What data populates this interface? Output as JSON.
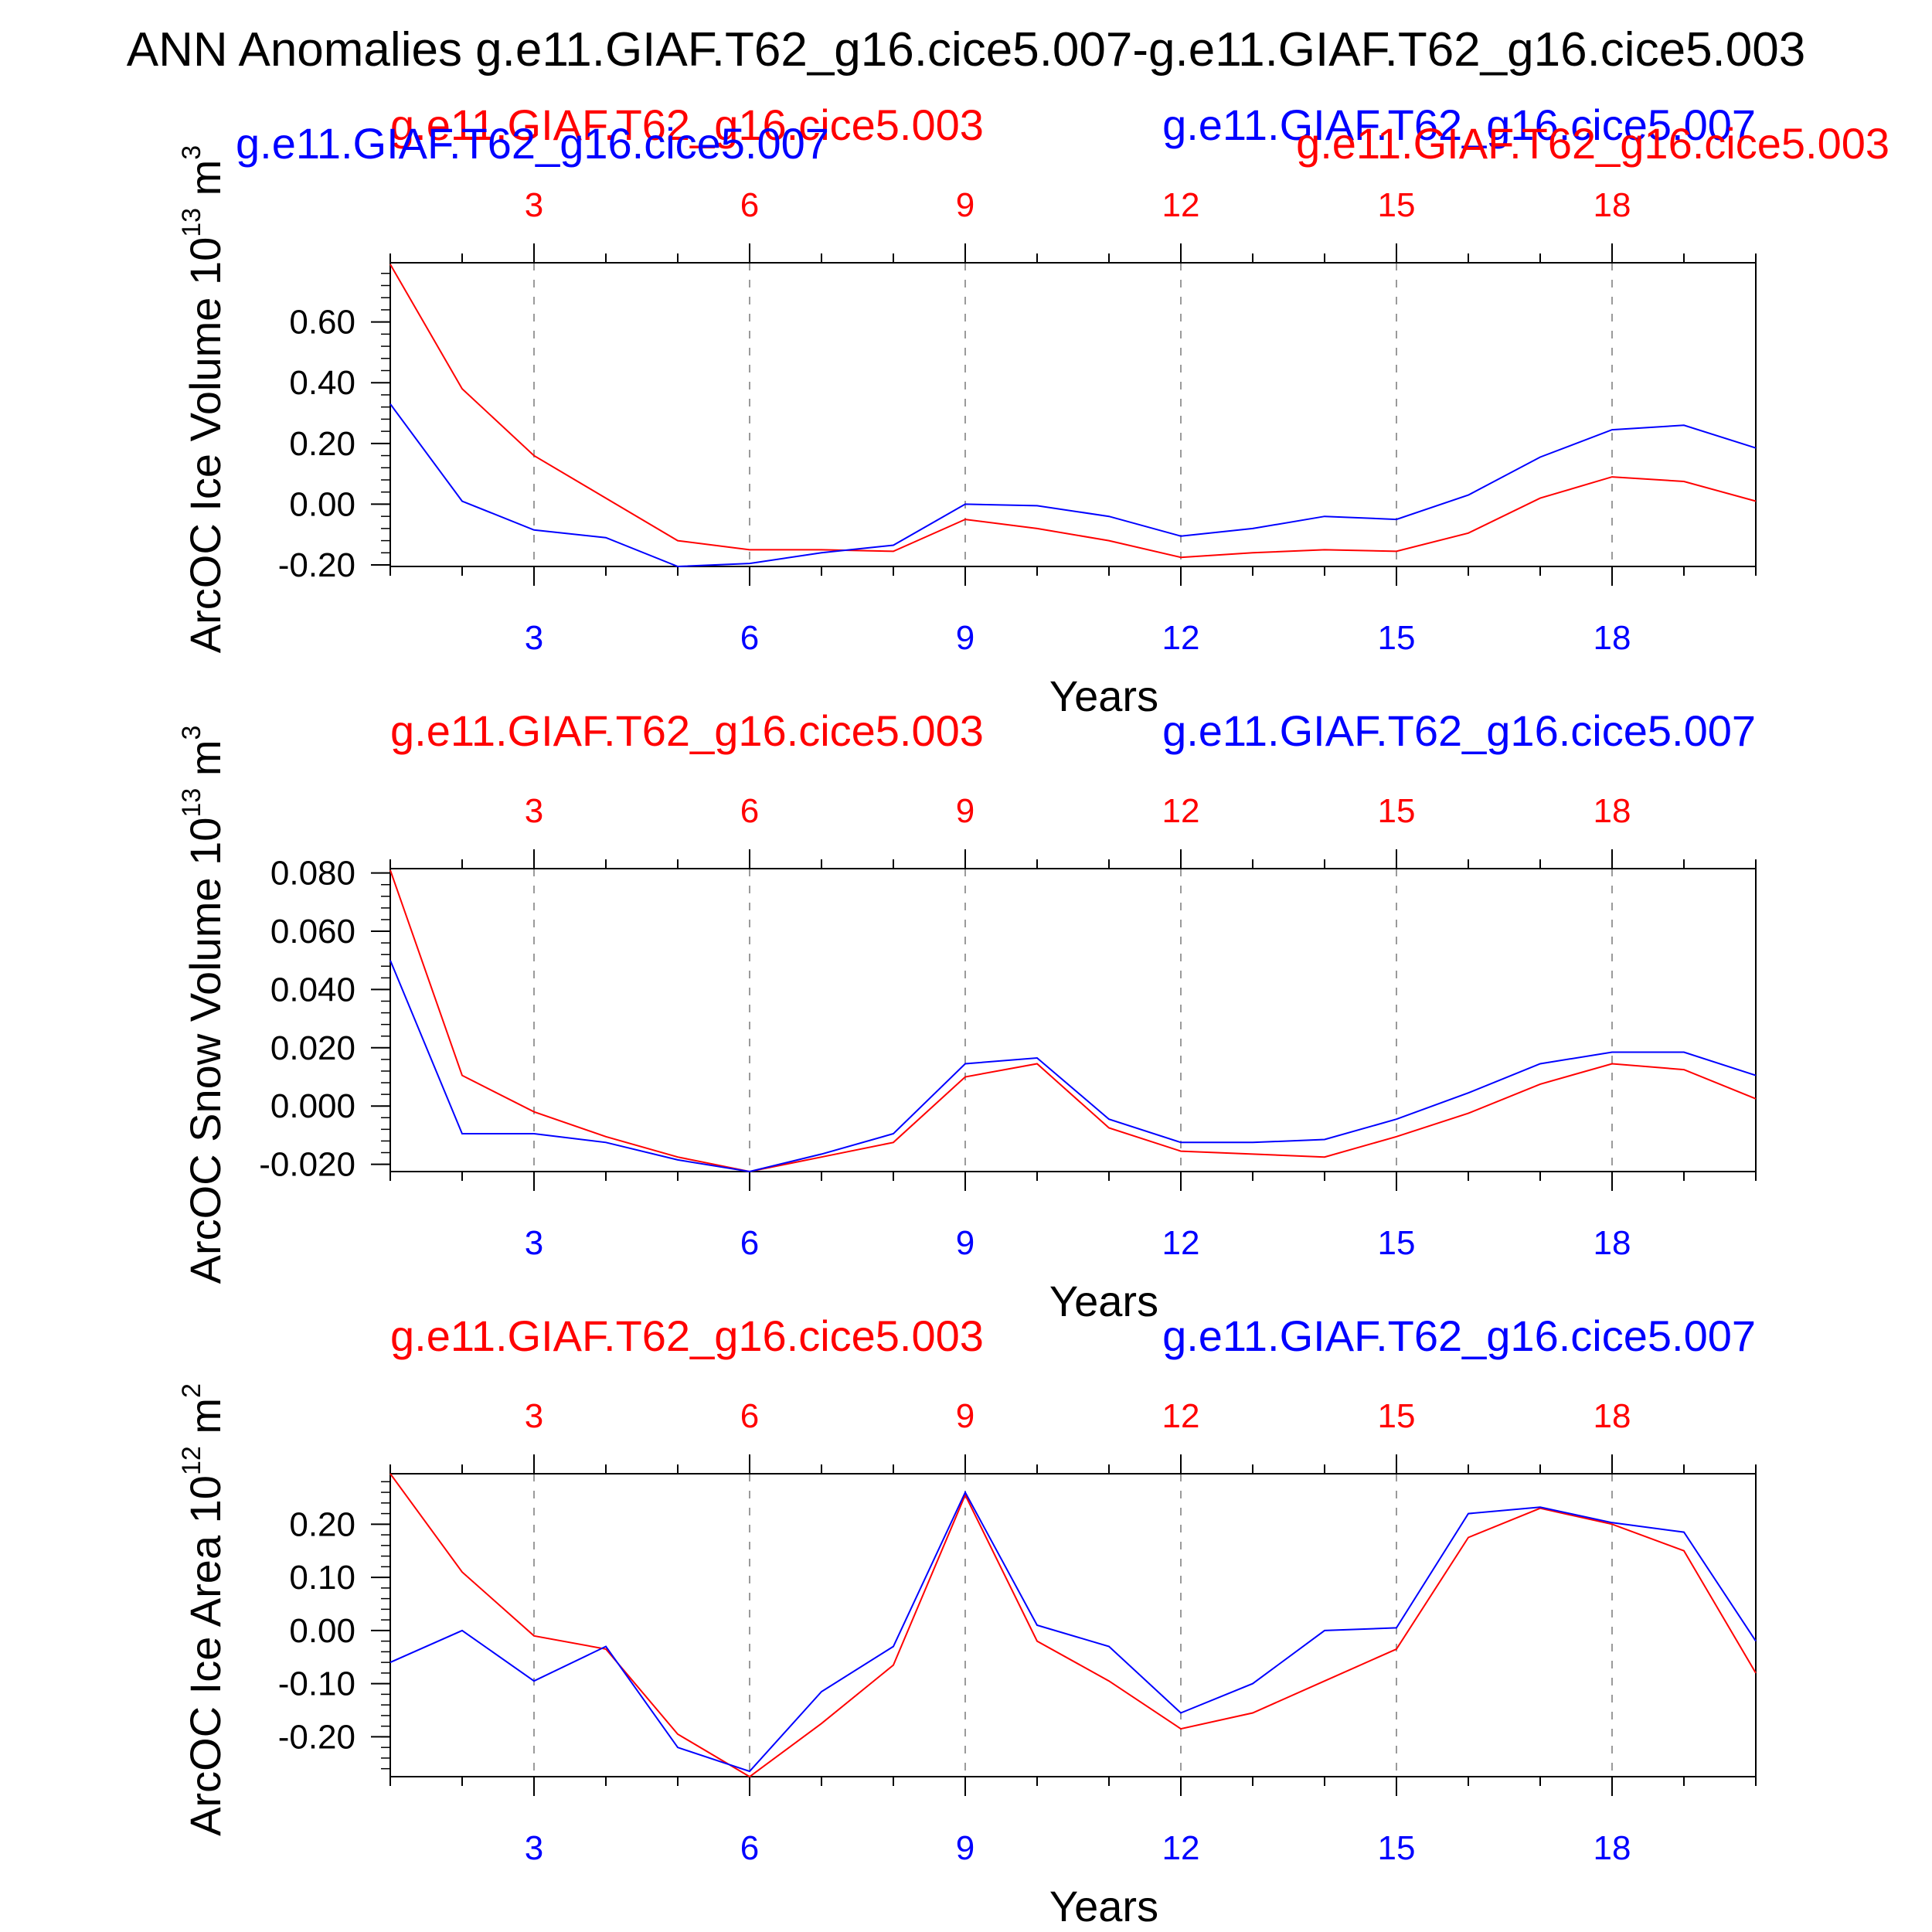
{
  "title": "ANN Anomalies g.e11.GIAF.T62_g16.cice5.007-g.e11.GIAF.T62_g16.cice5.003",
  "colors": {
    "case_red": "#ff0000",
    "case_blue": "#0000ff",
    "axis": "#000000",
    "grid": "#9a9a9a"
  },
  "legend": {
    "red": "g.e11.GIAF.T62_g16.cice5.003",
    "blue": "g.e11.GIAF.T62_g16.cice5.007"
  },
  "chart_data": [
    {
      "type": "line",
      "ylabel_main": "ArcOC Ice Volume 10",
      "ylabel_exp": "13",
      "ylabel_unit": "m",
      "ylabel_unit_exp": "3",
      "xlabel": "Years",
      "xlim": [
        1,
        20
      ],
      "ylim": [
        -0.205,
        0.795
      ],
      "yticks": [
        -0.2,
        0.0,
        0.2,
        0.4,
        0.6
      ],
      "ytick_labels": [
        "-0.20",
        "0.00",
        "0.20",
        "0.40",
        "0.60"
      ],
      "xticks": [
        3,
        6,
        9,
        12,
        15,
        18
      ],
      "xtick_labels": [
        "3",
        "6",
        "9",
        "12",
        "15",
        "18"
      ],
      "series": [
        {
          "name": "g.e11.GIAF.T62_g16.cice5.003",
          "color": "#ff0000",
          "x": [
            1,
            2,
            3,
            4,
            5,
            6,
            7,
            8,
            9,
            10,
            11,
            12,
            13,
            14,
            15,
            16,
            17,
            18,
            19,
            20
          ],
          "values": [
            0.79,
            0.38,
            0.16,
            0.02,
            -0.12,
            -0.15,
            -0.15,
            -0.155,
            -0.05,
            -0.08,
            -0.12,
            -0.175,
            -0.16,
            -0.15,
            -0.155,
            -0.095,
            0.02,
            0.09,
            0.075,
            0.01
          ]
        },
        {
          "name": "g.e11.GIAF.T62_g16.cice5.007",
          "color": "#0000ff",
          "x": [
            1,
            2,
            3,
            4,
            5,
            6,
            7,
            8,
            9,
            10,
            11,
            12,
            13,
            14,
            15,
            16,
            17,
            18,
            19,
            20
          ],
          "values": [
            0.33,
            0.01,
            -0.085,
            -0.11,
            -0.205,
            -0.195,
            -0.16,
            -0.135,
            0.0,
            -0.005,
            -0.04,
            -0.105,
            -0.08,
            -0.04,
            -0.05,
            0.03,
            0.155,
            0.245,
            0.26,
            0.185
          ]
        }
      ]
    },
    {
      "type": "line",
      "ylabel_main": "ArcOC Snow Volume 10",
      "ylabel_exp": "13",
      "ylabel_unit": "m",
      "ylabel_unit_exp": "3",
      "xlabel": "Years",
      "xlim": [
        1,
        20
      ],
      "ylim": [
        -0.0225,
        0.0815
      ],
      "yticks": [
        -0.02,
        0.0,
        0.02,
        0.04,
        0.06,
        0.08
      ],
      "ytick_labels": [
        "-0.020",
        "0.000",
        "0.020",
        "0.040",
        "0.060",
        "0.080"
      ],
      "xticks": [
        3,
        6,
        9,
        12,
        15,
        18
      ],
      "xtick_labels": [
        "3",
        "6",
        "9",
        "12",
        "15",
        "18"
      ],
      "series": [
        {
          "name": "g.e11.GIAF.T62_g16.cice5.003",
          "color": "#ff0000",
          "x": [
            1,
            2,
            3,
            4,
            5,
            6,
            7,
            8,
            9,
            10,
            11,
            12,
            13,
            14,
            15,
            16,
            17,
            18,
            19,
            20
          ],
          "values": [
            0.081,
            0.0105,
            -0.002,
            -0.0105,
            -0.0175,
            -0.0225,
            -0.0175,
            -0.0125,
            0.01,
            0.0145,
            -0.0075,
            -0.0155,
            -0.0165,
            -0.0175,
            -0.0105,
            -0.0025,
            0.0075,
            0.0145,
            0.0125,
            0.0025
          ]
        },
        {
          "name": "g.e11.GIAF.T62_g16.cice5.007",
          "color": "#0000ff",
          "x": [
            1,
            2,
            3,
            4,
            5,
            6,
            7,
            8,
            9,
            10,
            11,
            12,
            13,
            14,
            15,
            16,
            17,
            18,
            19,
            20
          ],
          "values": [
            0.05,
            -0.0095,
            -0.0095,
            -0.0125,
            -0.0185,
            -0.0225,
            -0.0165,
            -0.0095,
            0.0145,
            0.0165,
            -0.0045,
            -0.0125,
            -0.0125,
            -0.0115,
            -0.0045,
            0.0045,
            0.0145,
            0.0185,
            0.0185,
            0.0105
          ]
        }
      ]
    },
    {
      "type": "line",
      "ylabel_main": "ArcOC Ice Area 10",
      "ylabel_exp": "12",
      "ylabel_unit": "m",
      "ylabel_unit_exp": "2",
      "xlabel": "Years",
      "xlim": [
        1,
        20
      ],
      "ylim": [
        -0.275,
        0.295
      ],
      "yticks": [
        -0.2,
        -0.1,
        0.0,
        0.1,
        0.2
      ],
      "ytick_labels": [
        "-0.20",
        "-0.10",
        "0.00",
        "0.10",
        "0.20"
      ],
      "xticks": [
        3,
        6,
        9,
        12,
        15,
        18
      ],
      "xtick_labels": [
        "3",
        "6",
        "9",
        "12",
        "15",
        "18"
      ],
      "series": [
        {
          "name": "g.e11.GIAF.T62_g16.cice5.003",
          "color": "#ff0000",
          "x": [
            1,
            2,
            3,
            4,
            5,
            6,
            7,
            8,
            9,
            10,
            11,
            12,
            13,
            14,
            15,
            16,
            17,
            18,
            19,
            20
          ],
          "values": [
            0.295,
            0.11,
            -0.01,
            -0.035,
            -0.195,
            -0.275,
            -0.175,
            -0.065,
            0.255,
            -0.02,
            -0.095,
            -0.185,
            -0.155,
            -0.095,
            -0.035,
            0.175,
            0.23,
            0.2,
            0.15,
            -0.08
          ]
        },
        {
          "name": "g.e11.GIAF.T62_g16.cice5.007",
          "color": "#0000ff",
          "x": [
            1,
            2,
            3,
            4,
            5,
            6,
            7,
            8,
            9,
            10,
            11,
            12,
            13,
            14,
            15,
            16,
            17,
            18,
            19,
            20
          ],
          "values": [
            -0.06,
            0.0,
            -0.095,
            -0.03,
            -0.22,
            -0.265,
            -0.115,
            -0.03,
            0.26,
            0.01,
            -0.03,
            -0.155,
            -0.1,
            0.0,
            0.005,
            0.22,
            0.232,
            0.203,
            0.185,
            -0.02
          ]
        }
      ]
    }
  ]
}
